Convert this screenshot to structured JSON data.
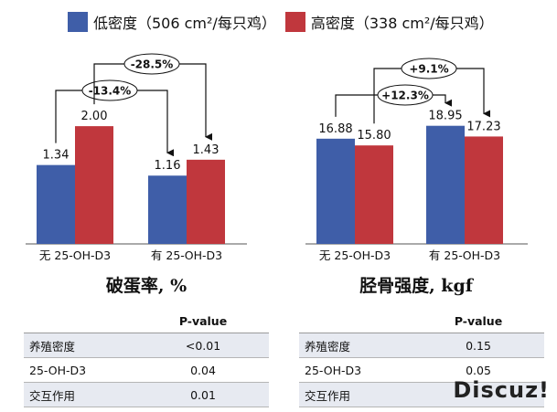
{
  "legend": {
    "low": {
      "label": "低密度（506 cm²/每只鸡）",
      "color": "#3f5ea8"
    },
    "high": {
      "label": "高密度（338 cm²/每只鸡）",
      "color": "#c0373d"
    }
  },
  "chart_data": [
    {
      "type": "bar",
      "categories": [
        "无 25-OH-D3",
        "有 25-OH-D3"
      ],
      "series": [
        {
          "name": "低密度（506 cm²/每只鸡）",
          "values": [
            1.34,
            1.16
          ],
          "color": "#3f5ea8"
        },
        {
          "name": "高密度（338 cm²/每只鸡）",
          "values": [
            2.0,
            1.43
          ],
          "color": "#c0373d"
        }
      ],
      "value_labels": [
        [
          "1.34",
          "1.16"
        ],
        [
          "2.00",
          "1.43"
        ]
      ],
      "ylim": [
        0,
        2.7
      ],
      "annotations": [
        {
          "text": "-13.4%",
          "from": {
            "series": 0,
            "category": 0
          },
          "to": {
            "series": 0,
            "category": 1
          }
        },
        {
          "text": "-28.5%",
          "from": {
            "series": 1,
            "category": 0
          },
          "to": {
            "series": 1,
            "category": 1
          }
        }
      ],
      "caption": "破蛋率, %"
    },
    {
      "type": "bar",
      "categories": [
        "无 25-OH-D3",
        "有  25-OH-D3"
      ],
      "series": [
        {
          "name": "低密度（506 cm²/每只鸡）",
          "values": [
            16.88,
            18.95
          ],
          "color": "#3f5ea8"
        },
        {
          "name": "高密度（338 cm²/每只鸡）",
          "values": [
            15.8,
            17.23
          ],
          "color": "#c0373d"
        }
      ],
      "value_labels": [
        [
          "16.88",
          "18.95"
        ],
        [
          "15.80",
          "17.23"
        ]
      ],
      "ylim": [
        0,
        25.5
      ],
      "annotations": [
        {
          "text": "+12.3%",
          "from": {
            "series": 0,
            "category": 0
          },
          "to": {
            "series": 0,
            "category": 1
          }
        },
        {
          "text": "+9.1%",
          "from": {
            "series": 1,
            "category": 0
          },
          "to": {
            "series": 1,
            "category": 1
          }
        }
      ],
      "caption": "胫骨强度, kgf"
    }
  ],
  "tables": [
    {
      "header": [
        "",
        "P-value"
      ],
      "rows": [
        [
          "养殖密度",
          "<0.01"
        ],
        [
          "25-OH-D3",
          "0.04"
        ],
        [
          "交互作用",
          "0.01"
        ]
      ]
    },
    {
      "header": [
        "",
        "P-value"
      ],
      "rows": [
        [
          "养殖密度",
          "0.15"
        ],
        [
          "25-OH-D3",
          "0.05"
        ],
        [
          "交互作用",
          ""
        ]
      ]
    }
  ],
  "watermark": "Discuz!"
}
